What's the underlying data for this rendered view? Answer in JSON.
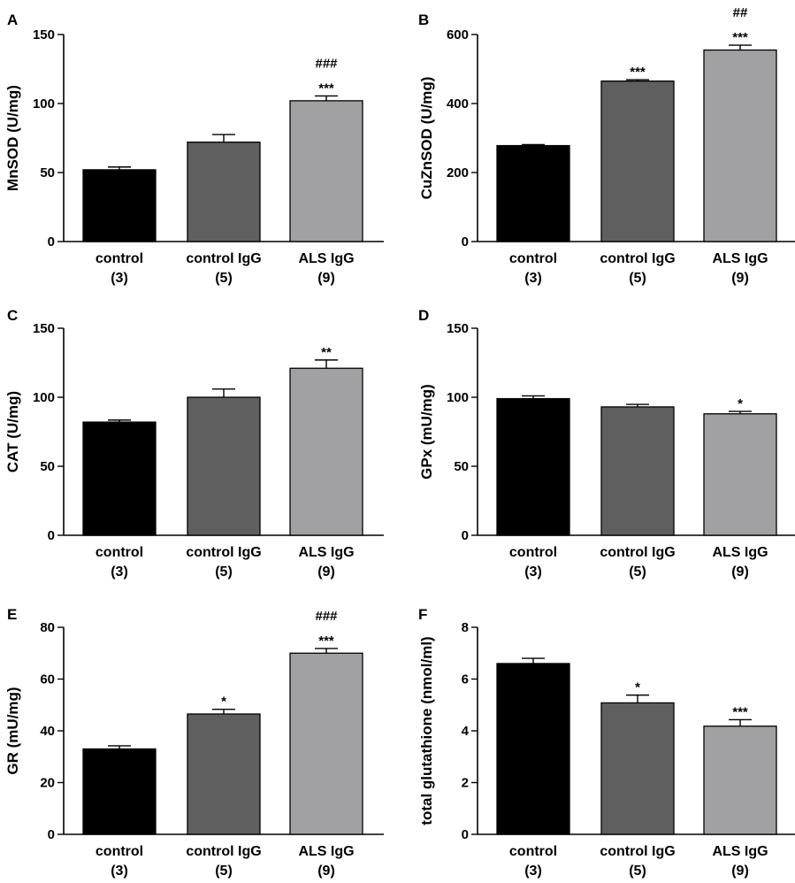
{
  "colors": {
    "control": "#000000",
    "control IgG": "#5f5f5f",
    "ALS IgG": "#a1a1a3"
  },
  "chart_data": [
    {
      "type": "bar",
      "panel": "A",
      "ylabel": "MnSOD (U/mg)",
      "categories": [
        "control",
        "control IgG",
        "ALS IgG"
      ],
      "group_sizes": [
        "(3)",
        "(5)",
        "(9)"
      ],
      "values": [
        52,
        72,
        102
      ],
      "errors": [
        2,
        5.5,
        3.5
      ],
      "ylim": [
        0,
        150
      ],
      "yticks": [
        0,
        50,
        100,
        150
      ],
      "ytick_labels": [
        "0",
        "50",
        "100",
        "150"
      ],
      "annotations": [
        [
          "",
          "",
          "***"
        ],
        [
          "",
          "",
          "###"
        ]
      ]
    },
    {
      "type": "bar",
      "panel": "B",
      "ylabel": "CuZnSOD (U/mg)",
      "categories": [
        "control",
        "control IgG",
        "ALS IgG"
      ],
      "group_sizes": [
        "(3)",
        "(5)",
        "(9)"
      ],
      "values": [
        278,
        465,
        555
      ],
      "errors": [
        3,
        4,
        14
      ],
      "ylim": [
        0,
        600
      ],
      "yticks": [
        0,
        200,
        400,
        600
      ],
      "ytick_labels": [
        "0",
        "200",
        "400",
        "600"
      ],
      "annotations": [
        [
          "",
          "***",
          "***"
        ],
        [
          "",
          "",
          "##"
        ]
      ]
    },
    {
      "type": "bar",
      "panel": "C",
      "ylabel": "CAT (U/mg)",
      "categories": [
        "control",
        "control IgG",
        "ALS IgG"
      ],
      "group_sizes": [
        "(3)",
        "(5)",
        "(9)"
      ],
      "values": [
        82,
        100,
        121
      ],
      "errors": [
        1.5,
        6,
        6
      ],
      "ylim": [
        0,
        150
      ],
      "yticks": [
        0,
        50,
        100,
        150
      ],
      "ytick_labels": [
        "0",
        "50",
        "100",
        "150"
      ],
      "annotations": [
        [
          "",
          "",
          "**"
        ]
      ]
    },
    {
      "type": "bar",
      "panel": "D",
      "ylabel": "GPx (mU/mg)",
      "categories": [
        "control",
        "control IgG",
        "ALS IgG"
      ],
      "group_sizes": [
        "(3)",
        "(5)",
        "(9)"
      ],
      "values": [
        99,
        93,
        88
      ],
      "errors": [
        2,
        1.8,
        1.8
      ],
      "ylim": [
        0,
        150
      ],
      "yticks": [
        0,
        50,
        100,
        150
      ],
      "ytick_labels": [
        "0",
        "50",
        "100",
        "150"
      ],
      "annotations": [
        [
          "",
          "",
          "*"
        ]
      ]
    },
    {
      "type": "bar",
      "panel": "E",
      "ylabel": "GR (mU/mg)",
      "categories": [
        "control",
        "control IgG",
        "ALS IgG"
      ],
      "group_sizes": [
        "(3)",
        "(5)",
        "(9)"
      ],
      "values": [
        33,
        46.5,
        70
      ],
      "errors": [
        1.2,
        1.8,
        1.8
      ],
      "ylim": [
        0,
        80
      ],
      "yticks": [
        0,
        20,
        40,
        60,
        80
      ],
      "ytick_labels": [
        "0",
        "20",
        "40",
        "60",
        "80"
      ],
      "annotations": [
        [
          "",
          "*",
          "***"
        ],
        [
          "",
          "",
          "###"
        ]
      ]
    },
    {
      "type": "bar",
      "panel": "F",
      "ylabel": "total glutathione (nmol/ml)",
      "categories": [
        "control",
        "control IgG",
        "ALS IgG"
      ],
      "group_sizes": [
        "(3)",
        "(5)",
        "(9)"
      ],
      "values": [
        6.6,
        5.08,
        4.18
      ],
      "errors": [
        0.2,
        0.3,
        0.25
      ],
      "ylim": [
        0,
        8
      ],
      "yticks": [
        0,
        2,
        4,
        6,
        8
      ],
      "ytick_labels": [
        "0",
        "2",
        "4",
        "6",
        "8"
      ],
      "annotations": [
        [
          "",
          "*",
          "***"
        ]
      ]
    }
  ]
}
